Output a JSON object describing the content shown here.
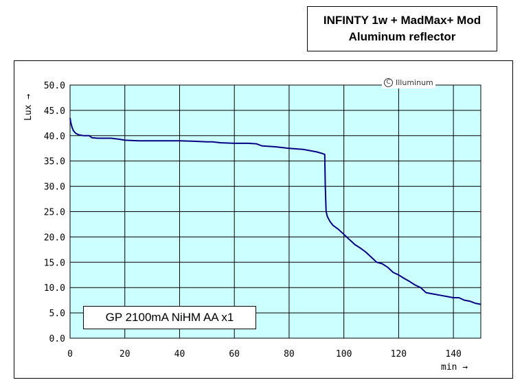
{
  "title_box": {
    "line1": "INFINTY 1w + MadMax+ Mod",
    "line2": "Aluminum reflector"
  },
  "watermark": {
    "icon": "copyright-icon",
    "text": "Illuminum"
  },
  "legend_label": "GP 2100mA NiHM AA x1",
  "chart_data": {
    "type": "line",
    "title": "INFINTY 1w + MadMax+ Mod / Aluminum reflector",
    "xlabel": "min →",
    "ylabel": "Lux →",
    "xlim": [
      0,
      150
    ],
    "ylim": [
      0,
      50
    ],
    "x_ticks": [
      "0",
      "20",
      "40",
      "60",
      "80",
      "100",
      "120",
      "140"
    ],
    "y_ticks": [
      "0.0",
      "5.0",
      "10.0",
      "15.0",
      "20.0",
      "25.0",
      "30.0",
      "35.0",
      "40.0",
      "45.0",
      "50.0"
    ],
    "grid": true,
    "plot_background": "#ccffff",
    "series": [
      {
        "name": "GP 2100mA NiHM AA x1",
        "color": "#000080",
        "x": [
          0,
          0.3,
          0.7,
          1.2,
          2,
          3,
          5,
          7,
          8,
          10,
          15,
          18,
          20,
          25,
          30,
          35,
          40,
          45,
          50,
          52,
          55,
          60,
          65,
          68,
          70,
          75,
          80,
          85,
          88,
          90,
          92,
          93,
          93.2,
          93.5,
          94,
          95,
          96,
          98,
          100,
          102,
          104,
          106,
          108,
          110,
          112,
          114,
          116,
          118,
          120,
          122,
          124,
          126,
          128,
          130,
          132,
          135,
          138,
          140,
          142,
          144,
          146,
          148,
          150
        ],
        "y": [
          43.5,
          42.5,
          41.7,
          41.0,
          40.5,
          40.2,
          40.0,
          40.0,
          39.6,
          39.5,
          39.5,
          39.3,
          39.1,
          39.0,
          39.0,
          39.0,
          39.0,
          38.9,
          38.8,
          38.8,
          38.6,
          38.5,
          38.5,
          38.4,
          38.0,
          37.8,
          37.5,
          37.3,
          37.0,
          36.8,
          36.5,
          36.3,
          30.0,
          25.0,
          24.0,
          23.0,
          22.3,
          21.5,
          20.5,
          19.5,
          18.5,
          17.8,
          17.0,
          16.0,
          15.0,
          14.7,
          14.0,
          13.0,
          12.5,
          11.8,
          11.2,
          10.5,
          10.0,
          9.0,
          8.8,
          8.5,
          8.2,
          8.0,
          8.0,
          7.5,
          7.3,
          6.9,
          6.7
        ]
      }
    ]
  }
}
